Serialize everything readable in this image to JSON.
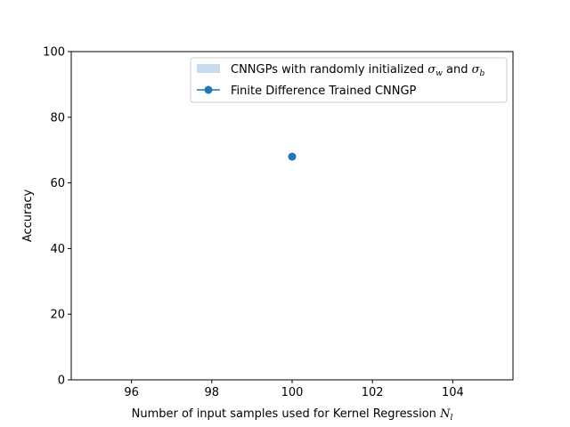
{
  "chart_data": {
    "type": "scatter",
    "title": "",
    "xlabel": "Number of input samples used for Kernel Regression",
    "xlabel_symbol": "N",
    "xlabel_subscript": "l",
    "ylabel": "Accuracy",
    "xlim": [
      94.5,
      105.5
    ],
    "ylim": [
      0,
      100
    ],
    "xticks": [
      96,
      98,
      100,
      102,
      104
    ],
    "yticks": [
      0,
      20,
      40,
      60,
      80,
      100
    ],
    "grid": false,
    "legend_placement": "upper-right",
    "series": [
      {
        "name": "CNNGPs with randomly initialized σw and σb",
        "legend_text_prefix": "CNNGPs with randomly initialized ",
        "legend_sym1": "σ",
        "legend_sub1": "w",
        "legend_mid": " and ",
        "legend_sym2": "σ",
        "legend_sub2": "b",
        "kind": "band",
        "color": "#c6dbef",
        "x": [],
        "y_low": [],
        "y_high": []
      },
      {
        "name": "Finite Difference Trained CNNGP",
        "kind": "line-marker",
        "color": "#1f77b4",
        "x": [
          100
        ],
        "y": [
          68
        ]
      }
    ]
  }
}
